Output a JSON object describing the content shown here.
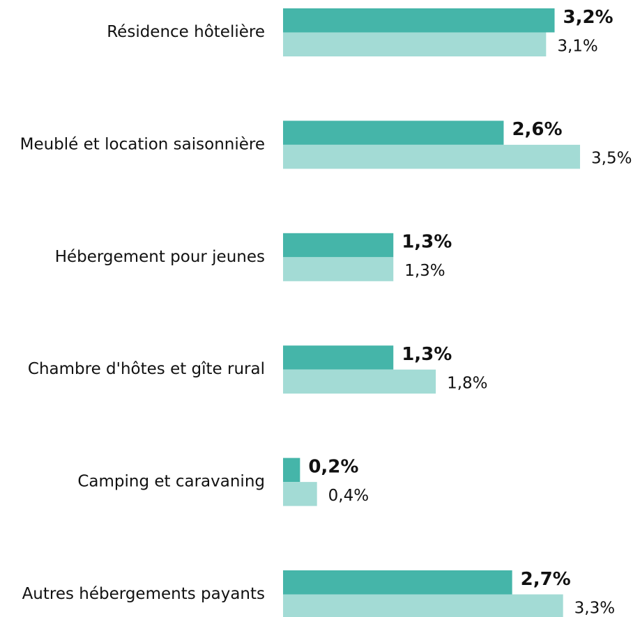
{
  "chart_data": {
    "type": "bar",
    "orientation": "horizontal",
    "categories": [
      "Résidence hôtelière",
      "Meublé et location saisonnière",
      "Hébergement pour jeunes",
      "Chambre d'hôtes et gîte rural",
      "Camping et caravaning",
      "Autres hébergements payants"
    ],
    "series": [
      {
        "color": "#45b5a9",
        "values": [
          3.2,
          2.6,
          1.3,
          1.3,
          0.2,
          2.7
        ],
        "value_labels": [
          "3,2%",
          "2,6%",
          "1,3%",
          "1,3%",
          "0,2%",
          "2,7%"
        ]
      },
      {
        "color": "#a3dbd5",
        "values": [
          3.1,
          3.5,
          1.3,
          1.8,
          0.4,
          3.3
        ],
        "value_labels": [
          "3,1%",
          "3,5%",
          "1,3%",
          "1,8%",
          "0,4%",
          "3,3%"
        ]
      }
    ]
  }
}
